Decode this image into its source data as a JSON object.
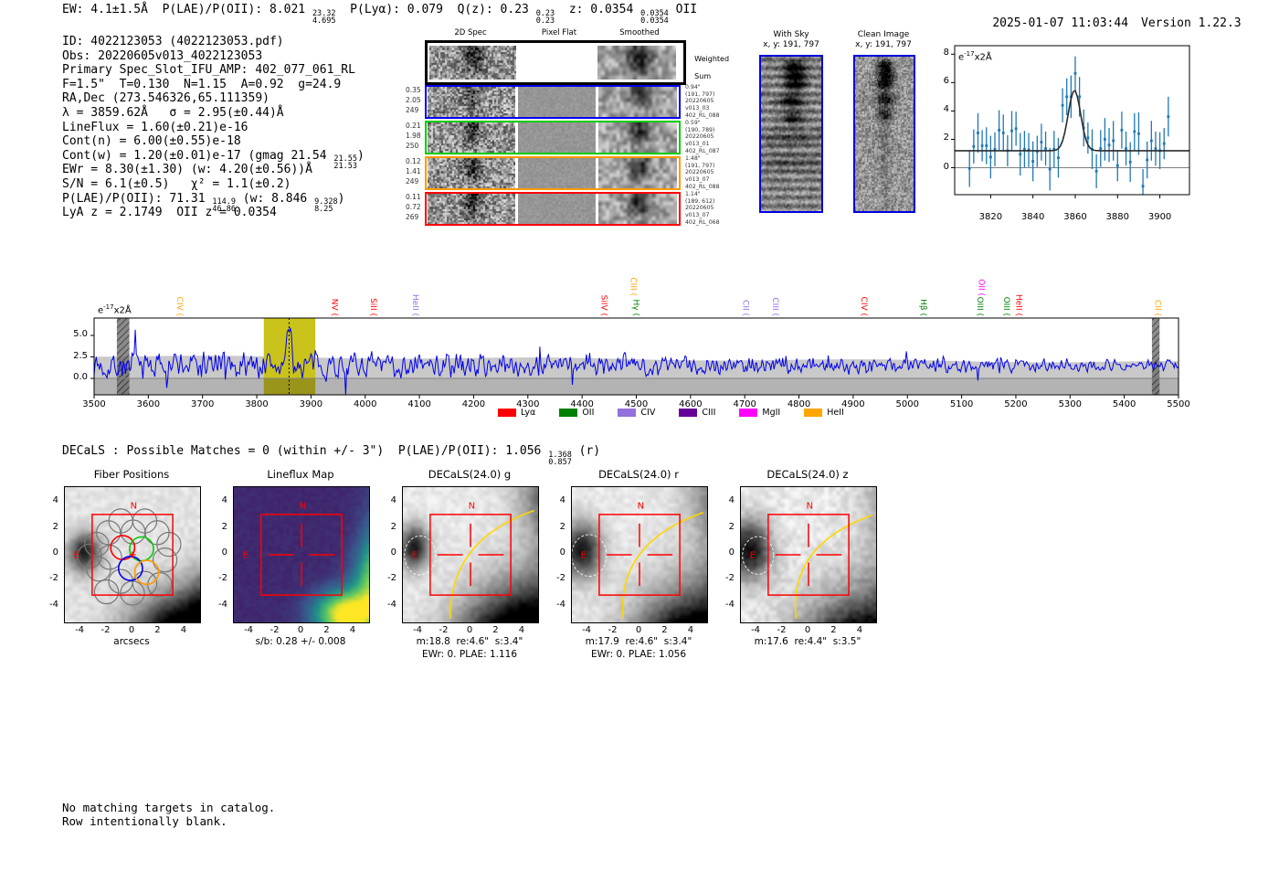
{
  "header": {
    "segments": [
      {
        "t": "EW: 4.1±1.5Å  P(LAE)/P(OII): 8.021 "
      },
      {
        "up": "23.32",
        "dn": "4.695"
      },
      {
        "t": "  P(Lyα): 0.079  Q(z): 0.23 "
      },
      {
        "up": "0.23",
        "dn": "0.23"
      },
      {
        "t": "  z: 0.0354 "
      },
      {
        "up": "0.0354",
        "dn": "0.0354"
      },
      {
        "t": " OII"
      }
    ],
    "timestamp": "2025-01-07 11:03:44",
    "version": "Version 1.22.3"
  },
  "info": {
    "lines": [
      [
        {
          "t": "ID: 4022123053 (4022123053.pdf)"
        }
      ],
      [
        {
          "t": "Obs: 20220605v013_4022123053"
        }
      ],
      [
        {
          "t": "Primary Spec_Slot_IFU_AMP: 402_077_061_RL"
        }
      ],
      [
        {
          "t": "F=1.5\"  T=0.130  N=1.15  A=0.92  g=24.9"
        }
      ],
      [
        {
          "t": "RA,Dec (273.546326,65.111359)"
        }
      ],
      [
        {
          "t": "λ = 3859.62Å   σ = 2.95(±0.44)Å"
        }
      ],
      [
        {
          "t": "LineFlux = 1.60(±0.21)e-16"
        }
      ],
      [
        {
          "t": "Cont(n) = 6.00(±0.55)e-18"
        }
      ],
      [
        {
          "t": "Cont(w) = 1.20(±0.01)e-17 (gmag 21.54 "
        },
        {
          "up": "21.55",
          "dn": "21.53"
        },
        {
          "t": ")"
        }
      ],
      [
        {
          "t": "EWr = 8.30(±1.30) (w: 4.20(±0.56))Å"
        }
      ],
      [
        {
          "t": "S/N = 6.1(±0.5)   χ² = 1.1(±0.2)"
        }
      ],
      [
        {
          "t": "P(LAE)/P(OII): 71.31 "
        },
        {
          "up": "114.9",
          "dn": "46.86"
        },
        {
          "t": " (w: 8.846 "
        },
        {
          "up": "9.328",
          "dn": "8.25"
        },
        {
          "t": ")"
        }
      ],
      [
        {
          "t": "LyA z = 2.1749  OII z = 0.0354"
        }
      ]
    ]
  },
  "cutouts2d": {
    "col_headers": [
      "2D Spec",
      "Pixel Flat",
      "Smoothed"
    ],
    "weighted_label_line1": "Weighted",
    "weighted_label_line2": "Sum",
    "rows": [
      {
        "color": "#0000ee",
        "left": [
          "0.35",
          "2.05",
          "249"
        ],
        "right": [
          "0.94\"",
          "(191, 797)",
          "20220605",
          "v013_03",
          "402_RL_088"
        ]
      },
      {
        "color": "#00cc00",
        "left": [
          "0.21",
          "1.98",
          "250"
        ],
        "right": [
          "0.59\"",
          "(190, 789)",
          "20220605",
          "v013_01",
          "402_RL_087"
        ]
      },
      {
        "color": "#ff9900",
        "left": [
          "0.12",
          "1.41",
          "249"
        ],
        "right": [
          "1.48\"",
          "(191, 797)",
          "20220605",
          "v013_07",
          "402_RL_088"
        ]
      },
      {
        "color": "#ff0000",
        "left": [
          "0.11",
          "0.72",
          "269"
        ],
        "right": [
          "1.14\"",
          "(189, 612)",
          "20220605",
          "v013_07",
          "402_RL_068"
        ]
      }
    ]
  },
  "sky": {
    "with_sky": {
      "title": "With Sky",
      "coords": "x, y: 191, 797"
    },
    "clean": {
      "title": "Clean Image",
      "coords": "x, y: 191, 797"
    }
  },
  "decals": {
    "segments": [
      {
        "t": "DECaLS : Possible Matches = 0 (within +/- 3\")  P(LAE)/P(OII): 1.056 "
      },
      {
        "up": "1.368",
        "dn": "0.857"
      },
      {
        "t": " (r)"
      }
    ]
  },
  "notes": [
    "No matching targets in catalog.",
    "Row intentionally blank."
  ],
  "panels": {
    "ticks": [
      -4,
      -2,
      0,
      2,
      4
    ],
    "compass": {
      "n": "N",
      "e": "E"
    },
    "items": [
      {
        "title": "Fiber Positions",
        "captions": [
          "arcsecs"
        ]
      },
      {
        "title": "Lineflux Map",
        "captions": [
          "s/b: 0.28 +/- 0.008"
        ]
      },
      {
        "title": "DECaLS(24.0) g",
        "captions": [
          "m:18.8  re:4.6\"  s:3.4\"",
          "EWr: 0. PLAE: 1.116"
        ]
      },
      {
        "title": "DECaLS(24.0) r",
        "captions": [
          "m:17.9  re:4.6\"  s:3.4\"",
          "EWr: 0. PLAE: 1.056"
        ]
      },
      {
        "title": "DECaLS(24.0) z",
        "captions": [
          "m:17.6  re:4.4\"  s:3.5\""
        ]
      }
    ],
    "fibers": {
      "red": [
        -0.75,
        0.55
      ],
      "green": [
        0.7,
        0.45
      ],
      "blue": [
        -0.15,
        -1.05
      ],
      "orange": [
        1.1,
        -1.35
      ]
    }
  },
  "chart_data": [
    {
      "type": "scatter",
      "name": "emission-line-fit-inset",
      "unit": {
        "mant": "e",
        "exp": "-17",
        "suffix": "x2Å"
      },
      "x_start": 3810,
      "x_step": 2,
      "x_ticks": [
        3820,
        3840,
        3860,
        3880,
        3900
      ],
      "y_ticks": [
        0,
        2,
        4,
        6,
        8
      ],
      "xlim": [
        3803,
        3914
      ],
      "ylim": [
        -1.9,
        8.6
      ],
      "values": [
        -0.05,
        1.5,
        2.45,
        1.55,
        1.55,
        0.75,
        1.3,
        2.65,
        2.45,
        1.2,
        2.6,
        2.75,
        0.95,
        1.3,
        1.25,
        0.45,
        1.15,
        1.8,
        1.35,
        -0.1,
        1.3,
        0.7,
        4.4,
        5.0,
        5.0,
        6.65,
        5.0,
        2.8,
        2.1,
        1.3,
        -0.25,
        1.35,
        2.0,
        1.6,
        1.9,
        0.15,
        2.65,
        1.35,
        0.4,
        2.55,
        2.4,
        -1.3,
        0.55,
        1.9,
        1.35,
        1.2,
        1.7,
        3.6
      ],
      "yerr": [
        1.3,
        1.2,
        1.4,
        1.1,
        1.3,
        1.5,
        1.2,
        1.4,
        1.3,
        1.1,
        1.4,
        1.2,
        1.5,
        1.3,
        1.2,
        1.4,
        1.1,
        1.3,
        1.2,
        1.5,
        1.3,
        1.4,
        1.2,
        1.3,
        1.5,
        1.2,
        1.4,
        1.3,
        1.1,
        1.4,
        1.2,
        1.3,
        1.5,
        1.2,
        1.4,
        1.1,
        1.3,
        1.2,
        1.4,
        1.3,
        1.5,
        1.2,
        1.3,
        1.4,
        1.2,
        1.3,
        1.1,
        1.4
      ],
      "fit": {
        "continuum": 1.2,
        "amplitude": 4.25,
        "center": 3859.62,
        "sigma": 2.95
      }
    },
    {
      "type": "line",
      "name": "full-spectrum",
      "unit": {
        "mant": "e",
        "exp": "-17",
        "suffix": "x2Å"
      },
      "xlim": [
        3500,
        5500
      ],
      "x_tick_step": 100,
      "y_ticks": [
        0.0,
        2.5,
        5.0
      ],
      "ylim": [
        -1.91,
        7.02
      ],
      "continuum": 1.55,
      "noise_sigma": [
        1.45,
        0.5
      ],
      "error_band": [
        2.6,
        1.9
      ],
      "emission_peak": {
        "center": 3859.62,
        "amplitude": 5.0,
        "sigma": 3.0
      },
      "highlight_band": [
        3813,
        3908
      ],
      "masked_bands": [
        [
          3542,
          3565
        ],
        [
          5451,
          5465
        ]
      ],
      "labels": [
        {
          "text": "CIV",
          "color": "#ffa500",
          "wavelength": 3658,
          "raised": false
        },
        {
          "text": "NV",
          "color": "#ff0000",
          "wavelength": 3944,
          "raised": false
        },
        {
          "text": "SiII",
          "color": "#ff0000",
          "wavelength": 4016,
          "raised": false
        },
        {
          "text": "HeII",
          "color": "#9370db",
          "wavelength": 4093,
          "raised": false
        },
        {
          "text": "SiIV",
          "color": "#ff0000",
          "wavelength": 4441,
          "raised": false
        },
        {
          "text": "CIII",
          "color": "#ffa500",
          "wavelength": 4495,
          "raised": true
        },
        {
          "text": "Hγ",
          "color": "#008000",
          "wavelength": 4500,
          "raised": false
        },
        {
          "text": "CII",
          "color": "#9370db",
          "wavelength": 4702,
          "raised": false
        },
        {
          "text": "CIII",
          "color": "#9370db",
          "wavelength": 4757,
          "raised": false
        },
        {
          "text": "CIV",
          "color": "#ff0000",
          "wavelength": 4920,
          "raised": false
        },
        {
          "text": "Hβ",
          "color": "#008000",
          "wavelength": 5030,
          "raised": false
        },
        {
          "text": "OIII",
          "color": "#008000",
          "wavelength": 5134,
          "raised": false
        },
        {
          "text": "OII",
          "color": "#ff00ff",
          "wavelength": 5137,
          "raised": true
        },
        {
          "text": "OIII",
          "color": "#008000",
          "wavelength": 5183,
          "raised": false
        },
        {
          "text": "HeII",
          "color": "#ff0000",
          "wavelength": 5206,
          "raised": false
        },
        {
          "text": "CII",
          "color": "#ffa500",
          "wavelength": 5462,
          "raised": false
        }
      ],
      "legend": [
        {
          "label": "Lyα",
          "color": "#ff0000"
        },
        {
          "label": "OII",
          "color": "#008000"
        },
        {
          "label": "CIV",
          "color": "#9370db"
        },
        {
          "label": "CIII",
          "color": "#660099"
        },
        {
          "label": "MgII",
          "color": "#ff00ff"
        },
        {
          "label": "HeII",
          "color": "#ffa500"
        }
      ]
    }
  ],
  "colors": {
    "spectrum_blue": "#0000ee",
    "point_blue": "#1f77b4",
    "band_olive": "#c9c31c",
    "band_olive_dark": "#9a941a",
    "marker_red": "#ff0000",
    "arc_yellow": "#ffd700",
    "border_blue": "#0000dd"
  }
}
